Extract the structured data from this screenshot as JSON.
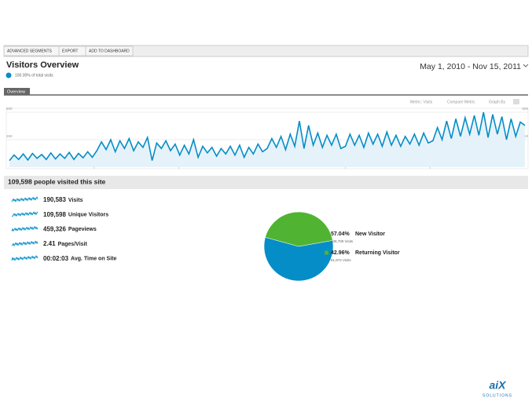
{
  "toolbar": [
    "ADVANCED SEGMENTS",
    "EXPORT",
    "ADD TO DASHBOARD"
  ],
  "header": {
    "title": "Visitors Overview",
    "subtitle": "100.00% of total visits",
    "date_range": "May 1, 2010 - Nov 15, 2011"
  },
  "tab": "Overview",
  "graph_options": [
    "Metric: Visits",
    "Compare Metric",
    "Graph By"
  ],
  "chart_data": [
    {
      "type": "line",
      "color": "#058dc7",
      "ylim": [
        0,
        500
      ],
      "yticks": [
        250,
        500
      ],
      "xlim": [
        0,
        112
      ],
      "xticks": [
        {
          "value": 18.4,
          "label": "Aug 1"
        },
        {
          "value": 36.8,
          "label": "Nov 1"
        },
        {
          "value": 73,
          "label": "May 1"
        },
        {
          "value": 91.4,
          "label": "Aug 1"
        }
      ],
      "values": [
        60,
        110,
        70,
        120,
        65,
        125,
        80,
        115,
        70,
        130,
        75,
        120,
        80,
        135,
        70,
        125,
        85,
        140,
        90,
        150,
        230,
        160,
        250,
        140,
        240,
        170,
        260,
        150,
        230,
        180,
        270,
        60,
        220,
        170,
        240,
        150,
        210,
        110,
        200,
        120,
        250,
        90,
        190,
        130,
        180,
        100,
        170,
        120,
        190,
        110,
        200,
        90,
        180,
        120,
        210,
        140,
        170,
        260,
        180,
        280,
        160,
        300,
        190,
        420,
        170,
        380,
        200,
        310,
        180,
        290,
        200,
        300,
        170,
        190,
        300,
        200,
        290,
        180,
        310,
        210,
        300,
        190,
        320,
        200,
        290,
        190,
        280,
        210,
        300,
        200,
        310,
        220,
        240,
        360,
        250,
        420,
        260,
        440,
        280,
        450,
        300,
        470,
        290,
        500,
        270,
        480,
        300,
        460,
        250,
        440,
        280,
        410,
        380
      ]
    },
    {
      "type": "pie",
      "values": [
        57.04,
        42.96
      ],
      "value_labels": [
        "57.04%",
        "42.96%"
      ],
      "labels": [
        "New Visitor",
        "Returning Visitor"
      ],
      "sublabels": [
        "108,709 Visits",
        "81,874 Visits"
      ],
      "colors": [
        "#058dc7",
        "#50b432"
      ]
    }
  ],
  "summary": "109,598 people visited this site",
  "metrics": [
    {
      "value": "190,583",
      "label": "Visits"
    },
    {
      "value": "109,598",
      "label": "Unique Visitors"
    },
    {
      "value": "459,326",
      "label": "Pageviews"
    },
    {
      "value": "2.41",
      "label": "Pages/Visit"
    },
    {
      "value": "00:02:03",
      "label": "Avg. Time on Site"
    }
  ],
  "logo": {
    "mark": "aiX",
    "text": "SOLUTIONS"
  }
}
